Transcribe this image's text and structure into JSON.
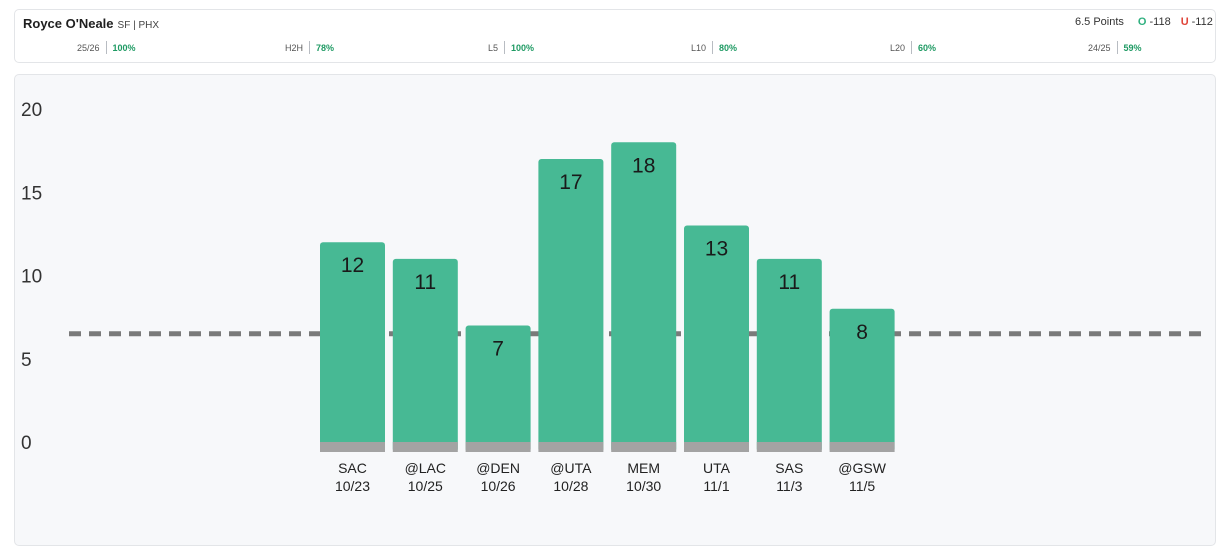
{
  "player": {
    "name": "Royce O'Neale",
    "position_team": "SF | PHX"
  },
  "line": {
    "prop": "6.5 Points",
    "over_tag": "O",
    "over_odds": "-118",
    "under_tag": "U",
    "under_odds": "-112"
  },
  "stats": [
    {
      "label": "25/26",
      "value": "100%"
    },
    {
      "label": "H2H",
      "value": "78%"
    },
    {
      "label": "L5",
      "value": "100%"
    },
    {
      "label": "L10",
      "value": "80%"
    },
    {
      "label": "L20",
      "value": "60%"
    },
    {
      "label": "24/25",
      "value": "59%"
    }
  ],
  "colors": {
    "bar": "#47b994",
    "bar_base": "#a3a3a3",
    "line": "#7a7a7a",
    "accent_green": "#1e9a63",
    "accent_red": "#e0453a"
  },
  "chart_data": {
    "type": "bar",
    "categories": [
      "SAC",
      "@LAC",
      "@DEN",
      "@UTA",
      "MEM",
      "UTA",
      "SAS",
      "@GSW"
    ],
    "dates": [
      "10/23",
      "10/25",
      "10/26",
      "10/28",
      "10/30",
      "11/1",
      "11/3",
      "11/5"
    ],
    "values": [
      12,
      11,
      7,
      17,
      18,
      13,
      11,
      8
    ],
    "reference_line": 6.5,
    "yticks": [
      0,
      5,
      10,
      15,
      20
    ],
    "ylim": [
      0,
      20
    ],
    "grid": false
  }
}
